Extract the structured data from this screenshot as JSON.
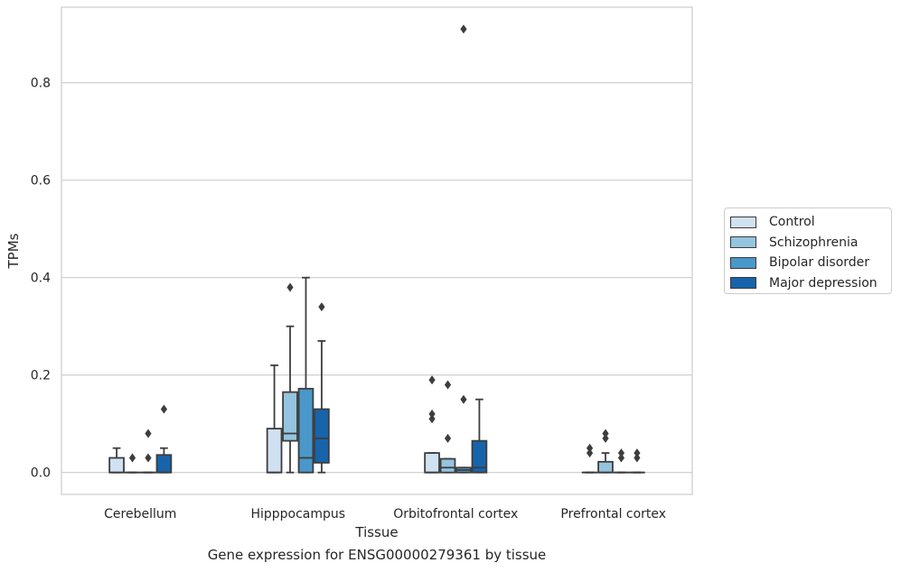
{
  "chart_data": {
    "type": "box",
    "xlabel": "Tissue",
    "ylabel": "TPMs",
    "caption": "Gene expression for ENSG00000279361 by tissue",
    "ylim": [
      -0.045,
      0.955
    ],
    "yticks": [
      "0.0",
      "0.2",
      "0.4",
      "0.6",
      "0.8"
    ],
    "ytick_values": [
      0.0,
      0.2,
      0.4,
      0.6,
      0.8
    ],
    "grid": "horizontal",
    "legend_position": "right",
    "categories": [
      "Cerebellum",
      "Hipppocampus",
      "Orbitofrontal cortex",
      "Prefrontal cortex"
    ],
    "series": [
      {
        "name": "Control",
        "color": "#d0e1f2",
        "boxes": [
          {
            "q1": 0.0,
            "median": 0.0,
            "q3": 0.03,
            "whisker_low": 0.0,
            "whisker_high": 0.05,
            "outliers": []
          },
          {
            "q1": 0.0,
            "median": 0.0,
            "q3": 0.09,
            "whisker_low": 0.0,
            "whisker_high": 0.22,
            "outliers": []
          },
          {
            "q1": 0.0,
            "median": 0.0,
            "q3": 0.04,
            "whisker_low": 0.0,
            "whisker_high": 0.04,
            "outliers": [
              0.11,
              0.12,
              0.19
            ]
          },
          {
            "q1": 0.0,
            "median": 0.0,
            "q3": 0.0,
            "whisker_low": 0.0,
            "whisker_high": 0.0,
            "outliers": [
              0.04,
              0.05
            ]
          }
        ]
      },
      {
        "name": "Schizophrenia",
        "color": "#94c4df",
        "boxes": [
          {
            "q1": 0.0,
            "median": 0.0,
            "q3": 0.0,
            "whisker_low": 0.0,
            "whisker_high": 0.0,
            "outliers": [
              0.03
            ]
          },
          {
            "q1": 0.065,
            "median": 0.08,
            "q3": 0.165,
            "whisker_low": 0.0,
            "whisker_high": 0.3,
            "outliers": [
              0.38
            ]
          },
          {
            "q1": 0.0,
            "median": 0.01,
            "q3": 0.028,
            "whisker_low": 0.0,
            "whisker_high": 0.028,
            "outliers": [
              0.07,
              0.18
            ]
          },
          {
            "q1": 0.0,
            "median": 0.0,
            "q3": 0.022,
            "whisker_low": 0.0,
            "whisker_high": 0.04,
            "outliers": [
              0.07,
              0.08
            ]
          }
        ]
      },
      {
        "name": "Bipolar disorder",
        "color": "#4a98c9",
        "boxes": [
          {
            "q1": 0.0,
            "median": 0.0,
            "q3": 0.0,
            "whisker_low": 0.0,
            "whisker_high": 0.0,
            "outliers": [
              0.03,
              0.08
            ]
          },
          {
            "q1": 0.0,
            "median": 0.03,
            "q3": 0.172,
            "whisker_low": 0.0,
            "whisker_high": 0.4,
            "outliers": []
          },
          {
            "q1": 0.0,
            "median": 0.005,
            "q3": 0.01,
            "whisker_low": 0.0,
            "whisker_high": 0.01,
            "outliers": [
              0.15,
              0.91
            ]
          },
          {
            "q1": 0.0,
            "median": 0.0,
            "q3": 0.0,
            "whisker_low": 0.0,
            "whisker_high": 0.0,
            "outliers": [
              0.03,
              0.04
            ]
          }
        ]
      },
      {
        "name": "Major depression",
        "color": "#1764ab",
        "boxes": [
          {
            "q1": 0.0,
            "median": 0.0,
            "q3": 0.036,
            "whisker_low": 0.0,
            "whisker_high": 0.05,
            "outliers": [
              0.13
            ]
          },
          {
            "q1": 0.02,
            "median": 0.07,
            "q3": 0.13,
            "whisker_low": 0.0,
            "whisker_high": 0.27,
            "outliers": [
              0.34
            ]
          },
          {
            "q1": 0.0,
            "median": 0.01,
            "q3": 0.065,
            "whisker_low": 0.0,
            "whisker_high": 0.15,
            "outliers": []
          },
          {
            "q1": 0.0,
            "median": 0.0,
            "q3": 0.0,
            "whisker_low": 0.0,
            "whisker_high": 0.0,
            "outliers": [
              0.03,
              0.04
            ]
          }
        ]
      }
    ]
  }
}
